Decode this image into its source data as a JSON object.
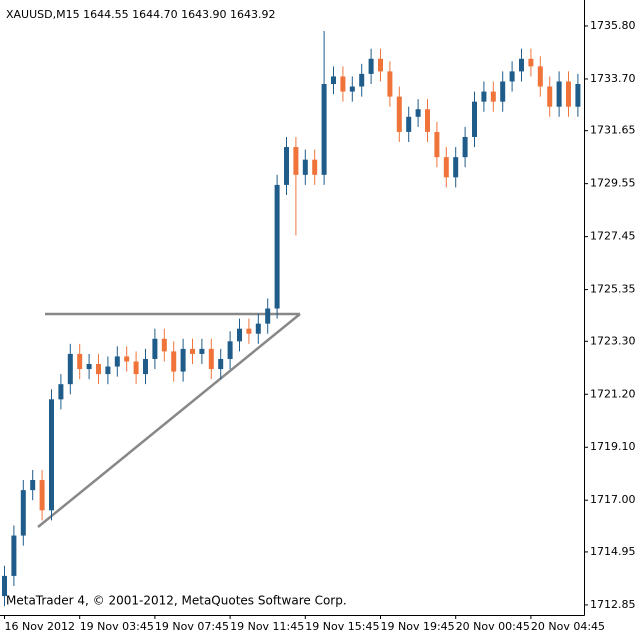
{
  "chart_data": {
    "type": "candlestick",
    "title": "XAUUSD,M15  1644.55 1644.70 1643.90 1643.92",
    "footer": "MetaTrader 4, © 2001-2012, MetaQuotes Software Corp.",
    "up_color": "#1f5c8a",
    "down_color": "#f0743a",
    "categories": [
      "16 Nov 2012",
      null,
      null,
      null,
      null,
      null,
      null,
      null,
      "19 Nov 03:45",
      null,
      null,
      null,
      null,
      null,
      null,
      null,
      "19 Nov 07:45",
      null,
      null,
      null,
      null,
      null,
      null,
      null,
      "19 Nov 11:45",
      null,
      null,
      null,
      null,
      null,
      null,
      null,
      "19 Nov 15:45",
      null,
      null,
      null,
      null,
      null,
      null,
      null,
      "19 Nov 19:45",
      null,
      null,
      null,
      null,
      null,
      null,
      null,
      "20 Nov 00:45",
      null,
      null,
      null,
      null,
      null,
      null,
      null,
      "20 Nov 04:45",
      null,
      null,
      null,
      null,
      null
    ],
    "open": [
      1713.2,
      1714.0,
      1715.6,
      1717.4,
      1717.8,
      1716.6,
      1721.0,
      1721.6,
      1722.8,
      1722.2,
      1722.4,
      1722.0,
      1722.3,
      1722.7,
      1722.5,
      1722.0,
      1722.6,
      1723.4,
      1722.9,
      1722.1,
      1723.0,
      1722.8,
      1723.0,
      1722.2,
      1722.6,
      1723.3,
      1723.8,
      1723.6,
      1724.0,
      1724.6,
      1729.5,
      1731.0,
      1729.9,
      1730.5,
      1729.9,
      1733.5,
      1733.8,
      1733.2,
      1733.4,
      1733.9,
      1734.5,
      1734.0,
      1733.0,
      1731.6,
      1732.2,
      1732.5,
      1731.6,
      1730.6,
      1729.8,
      1730.6,
      1731.4,
      1732.8,
      1733.2,
      1732.8,
      1733.6,
      1734.0,
      1734.5,
      1734.2,
      1733.4,
      1732.6,
      1733.6,
      1732.6
    ],
    "high": [
      1714.4,
      1716.0,
      1717.8,
      1718.2,
      1718.2,
      1721.4,
      1722.0,
      1723.2,
      1723.2,
      1722.8,
      1722.8,
      1722.7,
      1723.1,
      1723.1,
      1722.9,
      1723.0,
      1723.8,
      1723.8,
      1723.3,
      1723.4,
      1723.4,
      1723.4,
      1723.4,
      1723.0,
      1723.7,
      1724.2,
      1724.2,
      1724.4,
      1725.0,
      1729.9,
      1731.4,
      1731.4,
      1730.9,
      1730.9,
      1735.6,
      1734.2,
      1734.2,
      1733.8,
      1734.3,
      1734.9,
      1734.9,
      1734.4,
      1733.4,
      1732.6,
      1732.9,
      1732.9,
      1732.0,
      1731.0,
      1731.0,
      1731.8,
      1733.2,
      1733.6,
      1733.6,
      1734.0,
      1734.4,
      1734.9,
      1734.9,
      1734.6,
      1733.8,
      1734.0,
      1734.0,
      1733.9
    ],
    "low": [
      1712.8,
      1713.6,
      1715.2,
      1717.0,
      1716.2,
      1716.2,
      1720.6,
      1721.2,
      1721.8,
      1721.8,
      1721.6,
      1721.6,
      1721.9,
      1722.1,
      1721.6,
      1721.6,
      1722.2,
      1722.5,
      1721.7,
      1721.7,
      1722.4,
      1722.4,
      1721.8,
      1721.8,
      1722.2,
      1722.9,
      1723.2,
      1723.2,
      1723.6,
      1724.2,
      1729.1,
      1727.5,
      1729.5,
      1729.5,
      1729.5,
      1733.1,
      1732.8,
      1732.8,
      1733.0,
      1733.5,
      1733.6,
      1732.6,
      1731.2,
      1731.2,
      1731.8,
      1731.2,
      1730.2,
      1729.4,
      1729.4,
      1730.2,
      1731.0,
      1732.4,
      1732.4,
      1732.4,
      1733.2,
      1733.6,
      1733.8,
      1733.0,
      1732.2,
      1732.2,
      1732.2,
      1732.2
    ],
    "close": [
      1714.0,
      1715.6,
      1717.4,
      1717.8,
      1716.6,
      1721.0,
      1721.6,
      1722.8,
      1722.2,
      1722.4,
      1722.0,
      1722.3,
      1722.7,
      1722.5,
      1722.0,
      1722.6,
      1723.4,
      1722.9,
      1722.1,
      1723.0,
      1722.8,
      1723.0,
      1722.2,
      1722.6,
      1723.3,
      1723.8,
      1723.6,
      1724.0,
      1724.6,
      1729.5,
      1731.0,
      1729.9,
      1730.5,
      1729.9,
      1733.5,
      1733.8,
      1733.2,
      1733.4,
      1733.9,
      1734.5,
      1734.0,
      1733.0,
      1731.6,
      1732.2,
      1732.5,
      1731.6,
      1730.6,
      1729.8,
      1730.6,
      1731.4,
      1732.8,
      1733.2,
      1732.8,
      1733.6,
      1734.0,
      1734.5,
      1734.2,
      1733.4,
      1732.6,
      1733.6,
      1732.6,
      1733.5
    ],
    "ylim": [
      1712.45,
      1736.83
    ],
    "yticks": [
      {
        "value": 1735.8,
        "label": "1735.80"
      },
      {
        "value": 1733.7,
        "label": "1733.70"
      },
      {
        "value": 1731.65,
        "label": "1731.65"
      },
      {
        "value": 1729.55,
        "label": "1729.55"
      },
      {
        "value": 1727.45,
        "label": "1727.45"
      },
      {
        "value": 1725.35,
        "label": "1725.35"
      },
      {
        "value": 1723.3,
        "label": "1723.30"
      },
      {
        "value": 1721.2,
        "label": "1721.20"
      },
      {
        "value": 1719.1,
        "label": "1719.10"
      },
      {
        "value": 1717.0,
        "label": "1717.00"
      },
      {
        "value": 1714.95,
        "label": "1714.95"
      },
      {
        "value": 1712.85,
        "label": "1712.85"
      }
    ]
  }
}
